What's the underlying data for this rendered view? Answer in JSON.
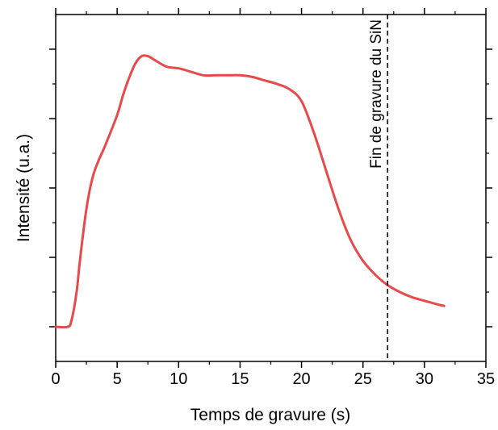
{
  "chart_data": {
    "type": "line",
    "title": "",
    "xlabel": "Temps de gravure (s)",
    "ylabel": "Intensité (u.a.)",
    "xlim": [
      0,
      35
    ],
    "ylim": [
      0,
      1.0
    ],
    "x_ticks": [
      0,
      5,
      10,
      15,
      20,
      25,
      30,
      35
    ],
    "x_tick_labels": [
      "0",
      "5",
      "10",
      "15",
      "20",
      "25",
      "30",
      "35"
    ],
    "y_tick_labels_shown": false,
    "y_ticks": [
      0.1,
      0.3,
      0.5,
      0.7,
      0.9
    ],
    "grid": false,
    "legend": "none",
    "colors": {
      "series": "#e8494b",
      "axis": "#000000",
      "marker_line": "#000000"
    },
    "series": [
      {
        "x": [
          0,
          1.0,
          1.3,
          1.7,
          2.0,
          2.5,
          3.0,
          3.5,
          4.0,
          5.0,
          5.5,
          6.0,
          6.5,
          7.0,
          7.5,
          8.0,
          9.0,
          10.0,
          11.0,
          12.0,
          13.0,
          14.0,
          15.0,
          16.0,
          17.0,
          18.0,
          19.0,
          20.0,
          21.0,
          22.0,
          23.0,
          24.0,
          25.0,
          26.0,
          27.0,
          28.0,
          29.0,
          30.0,
          31.0,
          31.6
        ],
        "y": [
          0.1,
          0.1,
          0.12,
          0.2,
          0.3,
          0.44,
          0.53,
          0.58,
          0.62,
          0.71,
          0.77,
          0.82,
          0.86,
          0.88,
          0.88,
          0.87,
          0.85,
          0.845,
          0.835,
          0.825,
          0.825,
          0.825,
          0.825,
          0.82,
          0.81,
          0.8,
          0.785,
          0.75,
          0.66,
          0.55,
          0.44,
          0.35,
          0.29,
          0.25,
          0.22,
          0.2,
          0.185,
          0.175,
          0.165,
          0.16
        ]
      }
    ],
    "annotations": [
      {
        "type": "vertical-dashed-line",
        "x": 27,
        "text": "Fin de gravure du SiN"
      }
    ]
  }
}
